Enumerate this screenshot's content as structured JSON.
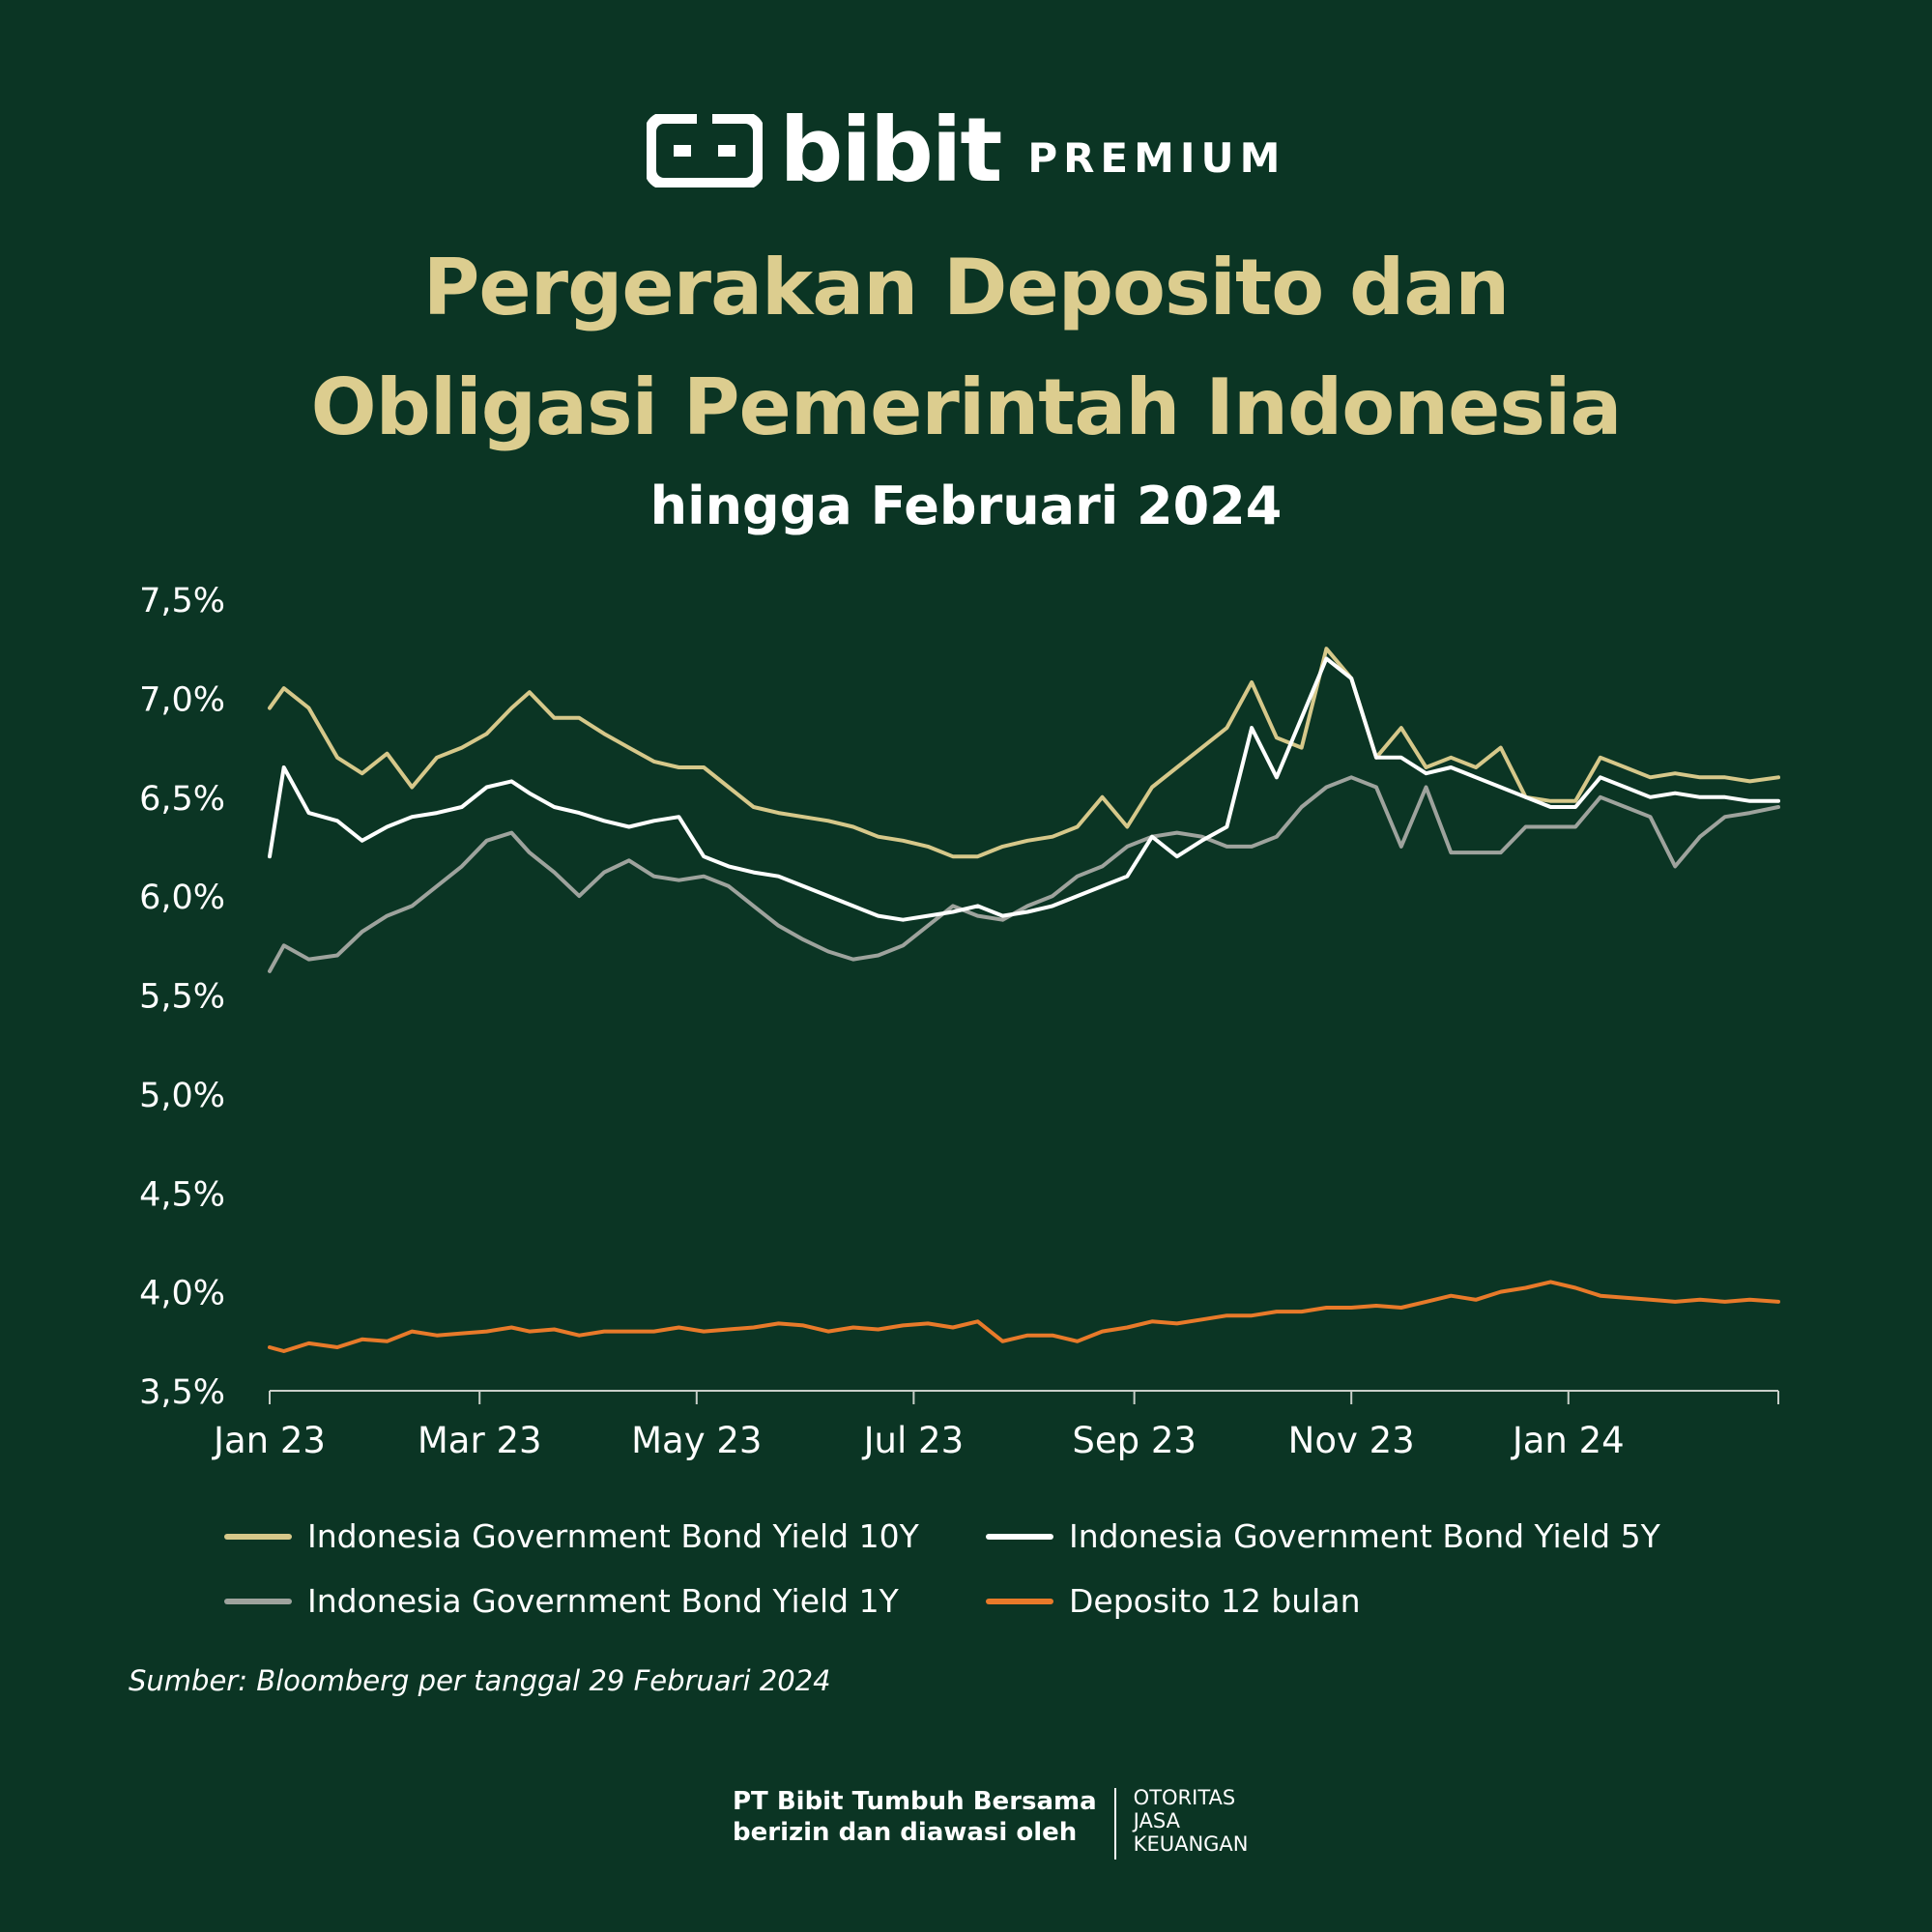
{
  "brand": {
    "name": "bibit",
    "tier": "PREMIUM",
    "icon": "bibit-logo-icon"
  },
  "header": {
    "title_line1": "Pergerakan Deposito dan",
    "title_line2": "Obligasi Pemerintah Indonesia",
    "subtitle": "hingga Februari 2024"
  },
  "colors": {
    "background": "#0b3524",
    "title": "#dccd8f",
    "y10": "#d6c88a",
    "y5": "#ffffff",
    "y1": "#9ea39d",
    "deposit": "#e87a2a"
  },
  "chart_data": {
    "type": "line",
    "x_tick_labels": [
      "Jan 23",
      "Mar 23",
      "May 23",
      "Jul 23",
      "Sep 23",
      "Nov 23",
      "Jan 24"
    ],
    "x_tick_dates": [
      "2023-01-01",
      "2023-03-01",
      "2023-05-01",
      "2023-07-01",
      "2023-09-01",
      "2023-11-01",
      "2024-01-01"
    ],
    "x_range": [
      "2023-01-01",
      "2024-02-29"
    ],
    "y_tick_labels": [
      "7,5%",
      "7,0%",
      "6,5%",
      "6,0%",
      "5,5%",
      "5,0%",
      "4,5%",
      "4,0%",
      "3,5%"
    ],
    "ylim": [
      3.5,
      7.5
    ],
    "grid": false,
    "legend_position": "bottom",
    "series": [
      {
        "name": "Indonesia Government Bond Yield 10Y",
        "x": [
          "2023-01-01",
          "2023-01-05",
          "2023-01-12",
          "2023-01-20",
          "2023-01-27",
          "2023-02-03",
          "2023-02-10",
          "2023-02-17",
          "2023-02-24",
          "2023-03-03",
          "2023-03-10",
          "2023-03-15",
          "2023-03-22",
          "2023-03-29",
          "2023-04-05",
          "2023-04-12",
          "2023-04-19",
          "2023-04-26",
          "2023-05-03",
          "2023-05-10",
          "2023-05-17",
          "2023-05-24",
          "2023-05-31",
          "2023-06-07",
          "2023-06-14",
          "2023-06-21",
          "2023-06-28",
          "2023-07-05",
          "2023-07-12",
          "2023-07-19",
          "2023-07-26",
          "2023-08-02",
          "2023-08-09",
          "2023-08-16",
          "2023-08-23",
          "2023-08-30",
          "2023-09-06",
          "2023-09-13",
          "2023-09-20",
          "2023-09-27",
          "2023-10-04",
          "2023-10-11",
          "2023-10-18",
          "2023-10-25",
          "2023-11-01",
          "2023-11-08",
          "2023-11-15",
          "2023-11-22",
          "2023-11-29",
          "2023-12-06",
          "2023-12-13",
          "2023-12-20",
          "2023-12-27",
          "2024-01-03",
          "2024-01-10",
          "2024-01-17",
          "2024-01-24",
          "2024-01-31",
          "2024-02-07",
          "2024-02-14",
          "2024-02-21",
          "2024-02-29"
        ],
        "values": [
          6.95,
          7.05,
          6.95,
          6.7,
          6.62,
          6.72,
          6.55,
          6.7,
          6.75,
          6.82,
          6.95,
          7.03,
          6.9,
          6.9,
          6.82,
          6.75,
          6.68,
          6.65,
          6.65,
          6.55,
          6.45,
          6.42,
          6.4,
          6.38,
          6.35,
          6.3,
          6.28,
          6.25,
          6.2,
          6.2,
          6.25,
          6.28,
          6.3,
          6.35,
          6.5,
          6.35,
          6.55,
          6.65,
          6.75,
          6.85,
          7.08,
          6.8,
          6.75,
          7.25,
          7.1,
          6.7,
          6.85,
          6.65,
          6.7,
          6.65,
          6.75,
          6.5,
          6.48,
          6.48,
          6.7,
          6.65,
          6.6,
          6.62,
          6.6,
          6.6,
          6.58,
          6.6
        ]
      },
      {
        "name": "Indonesia Government Bond Yield 5Y",
        "x": [
          "2023-01-01",
          "2023-01-05",
          "2023-01-12",
          "2023-01-20",
          "2023-01-27",
          "2023-02-03",
          "2023-02-10",
          "2023-02-17",
          "2023-02-24",
          "2023-03-03",
          "2023-03-10",
          "2023-03-15",
          "2023-03-22",
          "2023-03-29",
          "2023-04-05",
          "2023-04-12",
          "2023-04-19",
          "2023-04-26",
          "2023-05-03",
          "2023-05-10",
          "2023-05-17",
          "2023-05-24",
          "2023-05-31",
          "2023-06-07",
          "2023-06-14",
          "2023-06-21",
          "2023-06-28",
          "2023-07-05",
          "2023-07-12",
          "2023-07-19",
          "2023-07-26",
          "2023-08-02",
          "2023-08-09",
          "2023-08-16",
          "2023-08-23",
          "2023-08-30",
          "2023-09-06",
          "2023-09-13",
          "2023-09-20",
          "2023-09-27",
          "2023-10-04",
          "2023-10-11",
          "2023-10-18",
          "2023-10-25",
          "2023-11-01",
          "2023-11-08",
          "2023-11-15",
          "2023-11-22",
          "2023-11-29",
          "2023-12-06",
          "2023-12-13",
          "2023-12-20",
          "2023-12-27",
          "2024-01-03",
          "2024-01-10",
          "2024-01-17",
          "2024-01-24",
          "2024-01-31",
          "2024-02-07",
          "2024-02-14",
          "2024-02-21",
          "2024-02-29"
        ],
        "values": [
          6.2,
          6.65,
          6.42,
          6.38,
          6.28,
          6.35,
          6.4,
          6.42,
          6.45,
          6.55,
          6.58,
          6.52,
          6.45,
          6.42,
          6.38,
          6.35,
          6.38,
          6.4,
          6.2,
          6.15,
          6.12,
          6.1,
          6.05,
          6.0,
          5.95,
          5.9,
          5.88,
          5.9,
          5.92,
          5.95,
          5.9,
          5.92,
          5.95,
          6.0,
          6.05,
          6.1,
          6.3,
          6.2,
          6.28,
          6.35,
          6.85,
          6.6,
          6.9,
          7.2,
          7.1,
          6.7,
          6.7,
          6.62,
          6.65,
          6.6,
          6.55,
          6.5,
          6.45,
          6.45,
          6.6,
          6.55,
          6.5,
          6.52,
          6.5,
          6.5,
          6.48,
          6.48
        ]
      },
      {
        "name": "Indonesia Government Bond Yield 1Y",
        "x": [
          "2023-01-01",
          "2023-01-05",
          "2023-01-12",
          "2023-01-20",
          "2023-01-27",
          "2023-02-03",
          "2023-02-10",
          "2023-02-17",
          "2023-02-24",
          "2023-03-03",
          "2023-03-10",
          "2023-03-15",
          "2023-03-22",
          "2023-03-29",
          "2023-04-05",
          "2023-04-12",
          "2023-04-19",
          "2023-04-26",
          "2023-05-03",
          "2023-05-10",
          "2023-05-17",
          "2023-05-24",
          "2023-05-31",
          "2023-06-07",
          "2023-06-14",
          "2023-06-21",
          "2023-06-28",
          "2023-07-05",
          "2023-07-12",
          "2023-07-19",
          "2023-07-26",
          "2023-08-02",
          "2023-08-09",
          "2023-08-16",
          "2023-08-23",
          "2023-08-30",
          "2023-09-06",
          "2023-09-13",
          "2023-09-20",
          "2023-09-27",
          "2023-10-04",
          "2023-10-11",
          "2023-10-18",
          "2023-10-25",
          "2023-11-01",
          "2023-11-08",
          "2023-11-15",
          "2023-11-22",
          "2023-11-29",
          "2023-12-06",
          "2023-12-13",
          "2023-12-20",
          "2023-12-27",
          "2024-01-03",
          "2024-01-10",
          "2024-01-17",
          "2024-01-24",
          "2024-01-31",
          "2024-02-07",
          "2024-02-14",
          "2024-02-21",
          "2024-02-29"
        ],
        "values": [
          5.62,
          5.75,
          5.68,
          5.7,
          5.82,
          5.9,
          5.95,
          6.05,
          6.15,
          6.28,
          6.32,
          6.22,
          6.12,
          6.0,
          6.12,
          6.18,
          6.1,
          6.08,
          6.1,
          6.05,
          5.95,
          5.85,
          5.78,
          5.72,
          5.68,
          5.7,
          5.75,
          5.85,
          5.95,
          5.9,
          5.88,
          5.95,
          6.0,
          6.1,
          6.15,
          6.25,
          6.3,
          6.32,
          6.3,
          6.25,
          6.25,
          6.3,
          6.45,
          6.55,
          6.6,
          6.55,
          6.25,
          6.55,
          6.22,
          6.22,
          6.22,
          6.35,
          6.35,
          6.35,
          6.5,
          6.45,
          6.4,
          6.15,
          6.3,
          6.4,
          6.42,
          6.45
        ]
      },
      {
        "name": "Deposito 12 bulan",
        "x": [
          "2023-01-01",
          "2023-01-05",
          "2023-01-12",
          "2023-01-20",
          "2023-01-27",
          "2023-02-03",
          "2023-02-10",
          "2023-02-17",
          "2023-02-24",
          "2023-03-03",
          "2023-03-10",
          "2023-03-15",
          "2023-03-22",
          "2023-03-29",
          "2023-04-05",
          "2023-04-12",
          "2023-04-19",
          "2023-04-26",
          "2023-05-03",
          "2023-05-10",
          "2023-05-17",
          "2023-05-24",
          "2023-05-31",
          "2023-06-07",
          "2023-06-14",
          "2023-06-21",
          "2023-06-28",
          "2023-07-05",
          "2023-07-12",
          "2023-07-19",
          "2023-07-26",
          "2023-08-02",
          "2023-08-09",
          "2023-08-16",
          "2023-08-23",
          "2023-08-30",
          "2023-09-06",
          "2023-09-13",
          "2023-09-20",
          "2023-09-27",
          "2023-10-04",
          "2023-10-11",
          "2023-10-18",
          "2023-10-25",
          "2023-11-01",
          "2023-11-08",
          "2023-11-15",
          "2023-11-22",
          "2023-11-29",
          "2023-12-06",
          "2023-12-13",
          "2023-12-20",
          "2023-12-27",
          "2024-01-03",
          "2024-01-10",
          "2024-01-17",
          "2024-01-24",
          "2024-01-31",
          "2024-02-07",
          "2024-02-14",
          "2024-02-21",
          "2024-02-29"
        ],
        "values": [
          3.72,
          3.7,
          3.74,
          3.72,
          3.76,
          3.75,
          3.8,
          3.78,
          3.79,
          3.8,
          3.82,
          3.8,
          3.81,
          3.78,
          3.8,
          3.8,
          3.8,
          3.82,
          3.8,
          3.81,
          3.82,
          3.84,
          3.83,
          3.8,
          3.82,
          3.81,
          3.83,
          3.84,
          3.82,
          3.85,
          3.75,
          3.78,
          3.78,
          3.75,
          3.8,
          3.82,
          3.85,
          3.84,
          3.86,
          3.88,
          3.88,
          3.9,
          3.9,
          3.92,
          3.92,
          3.93,
          3.92,
          3.95,
          3.98,
          3.96,
          4.0,
          4.02,
          4.05,
          4.02,
          3.98,
          3.97,
          3.96,
          3.95,
          3.96,
          3.95,
          3.96,
          3.95
        ]
      }
    ]
  },
  "source": "Sumber: Bloomberg per tanggal 29 Februari 2024",
  "footer": {
    "company_line1": "PT Bibit Tumbuh Bersama",
    "company_line2": "berizin dan diawasi oleh",
    "regulator_line1": "OTORITAS",
    "regulator_line2": "JASA",
    "regulator_line3": "KEUANGAN"
  }
}
